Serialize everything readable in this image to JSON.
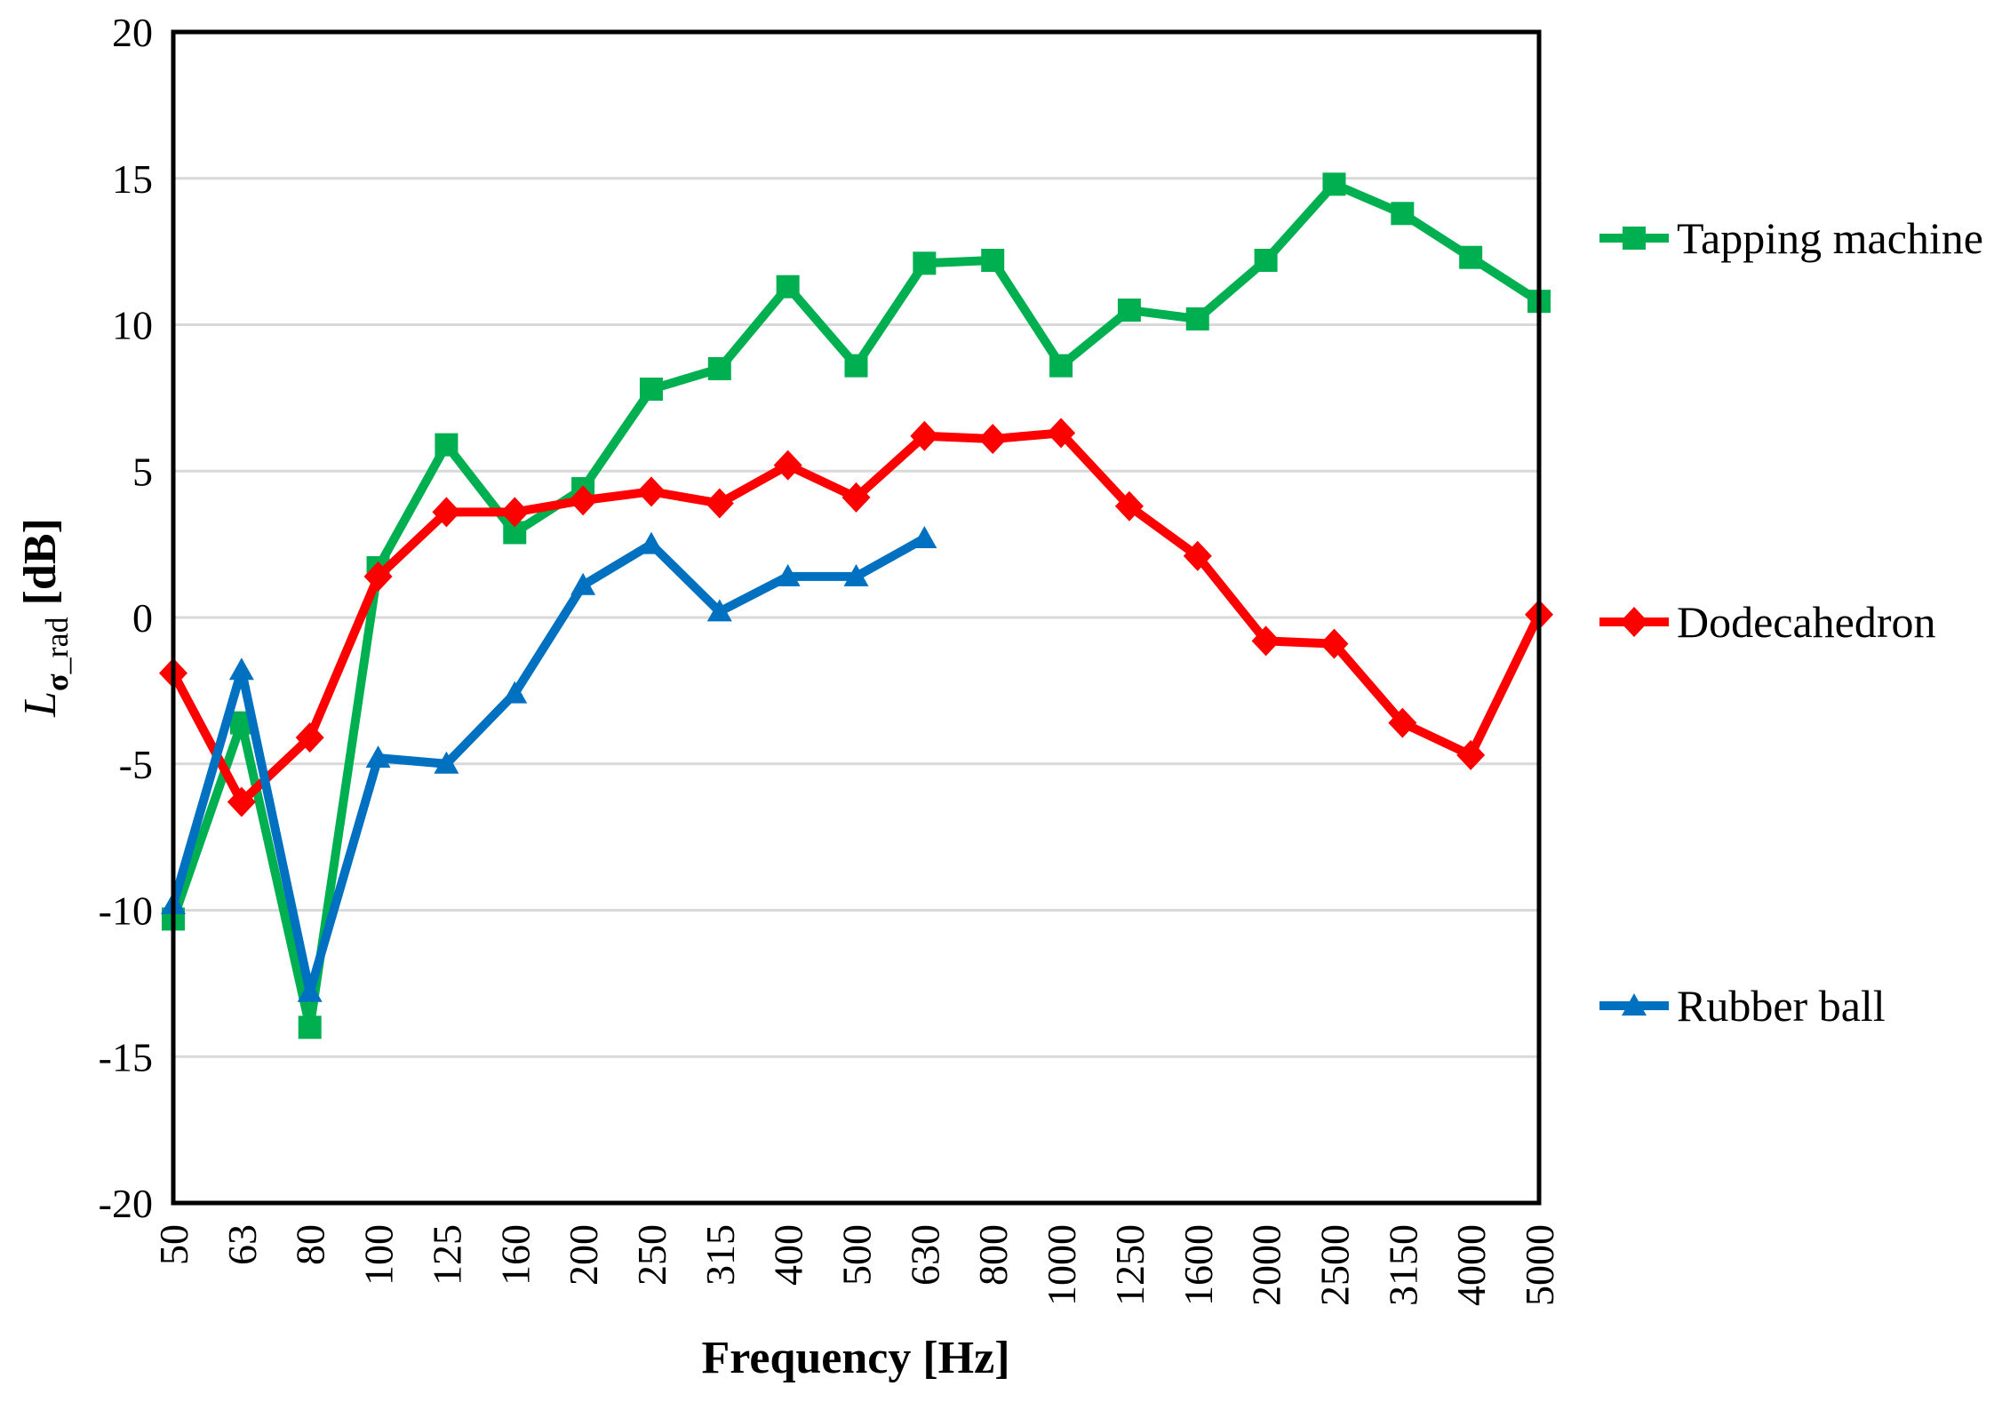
{
  "figure": {
    "background": "#FFFFFF",
    "axis_color": "#000000",
    "gridline_color": "#D9D9D9"
  },
  "chart_data": {
    "type": "line",
    "title": "",
    "xlabel": "Frequency [Hz]",
    "ylabel": "L_σ_rad [dB]",
    "ylabel_parts": {
      "main": "L",
      "sub_bold": "σ",
      "sub": "_rad",
      "unit": " [dB]"
    },
    "categories": [
      "50",
      "63",
      "80",
      "100",
      "125",
      "160",
      "200",
      "250",
      "315",
      "400",
      "500",
      "630",
      "800",
      "1000",
      "1250",
      "1600",
      "2000",
      "2500",
      "3150",
      "4000",
      "5000"
    ],
    "series": [
      {
        "name": "Tapping machine",
        "color": "#00B050",
        "marker": "square",
        "values": [
          -10.3,
          -3.6,
          -14.0,
          1.7,
          5.9,
          2.9,
          4.4,
          7.8,
          8.5,
          11.3,
          8.6,
          12.1,
          12.2,
          8.6,
          10.5,
          10.2,
          12.2,
          14.8,
          13.8,
          12.3,
          10.8
        ]
      },
      {
        "name": "Dodecahedron",
        "color": "#FF0000",
        "marker": "diamond",
        "values": [
          -1.9,
          -6.3,
          -4.1,
          1.4,
          3.6,
          3.6,
          4.0,
          4.3,
          3.9,
          5.2,
          4.1,
          6.2,
          6.1,
          6.3,
          3.8,
          2.1,
          -0.8,
          -0.9,
          -3.6,
          -4.7,
          0.1
        ]
      },
      {
        "name": "Rubber ball",
        "color": "#0070C0",
        "marker": "triangle",
        "values": [
          -9.8,
          -1.8,
          -12.8,
          -4.8,
          -5.0,
          -2.6,
          1.1,
          2.5,
          0.2,
          1.4,
          1.4,
          2.7,
          null,
          null,
          null,
          null,
          null,
          null,
          null,
          null,
          null
        ]
      }
    ],
    "ylim": [
      -20,
      20
    ],
    "ytick_step": 5,
    "yticks": [
      20,
      15,
      10,
      5,
      0,
      -5,
      -10,
      -15,
      -20
    ],
    "grid": "horizontal",
    "legend_position": "right",
    "legend": [
      "Tapping machine",
      "Dodecahedron",
      "Rubber ball"
    ]
  }
}
